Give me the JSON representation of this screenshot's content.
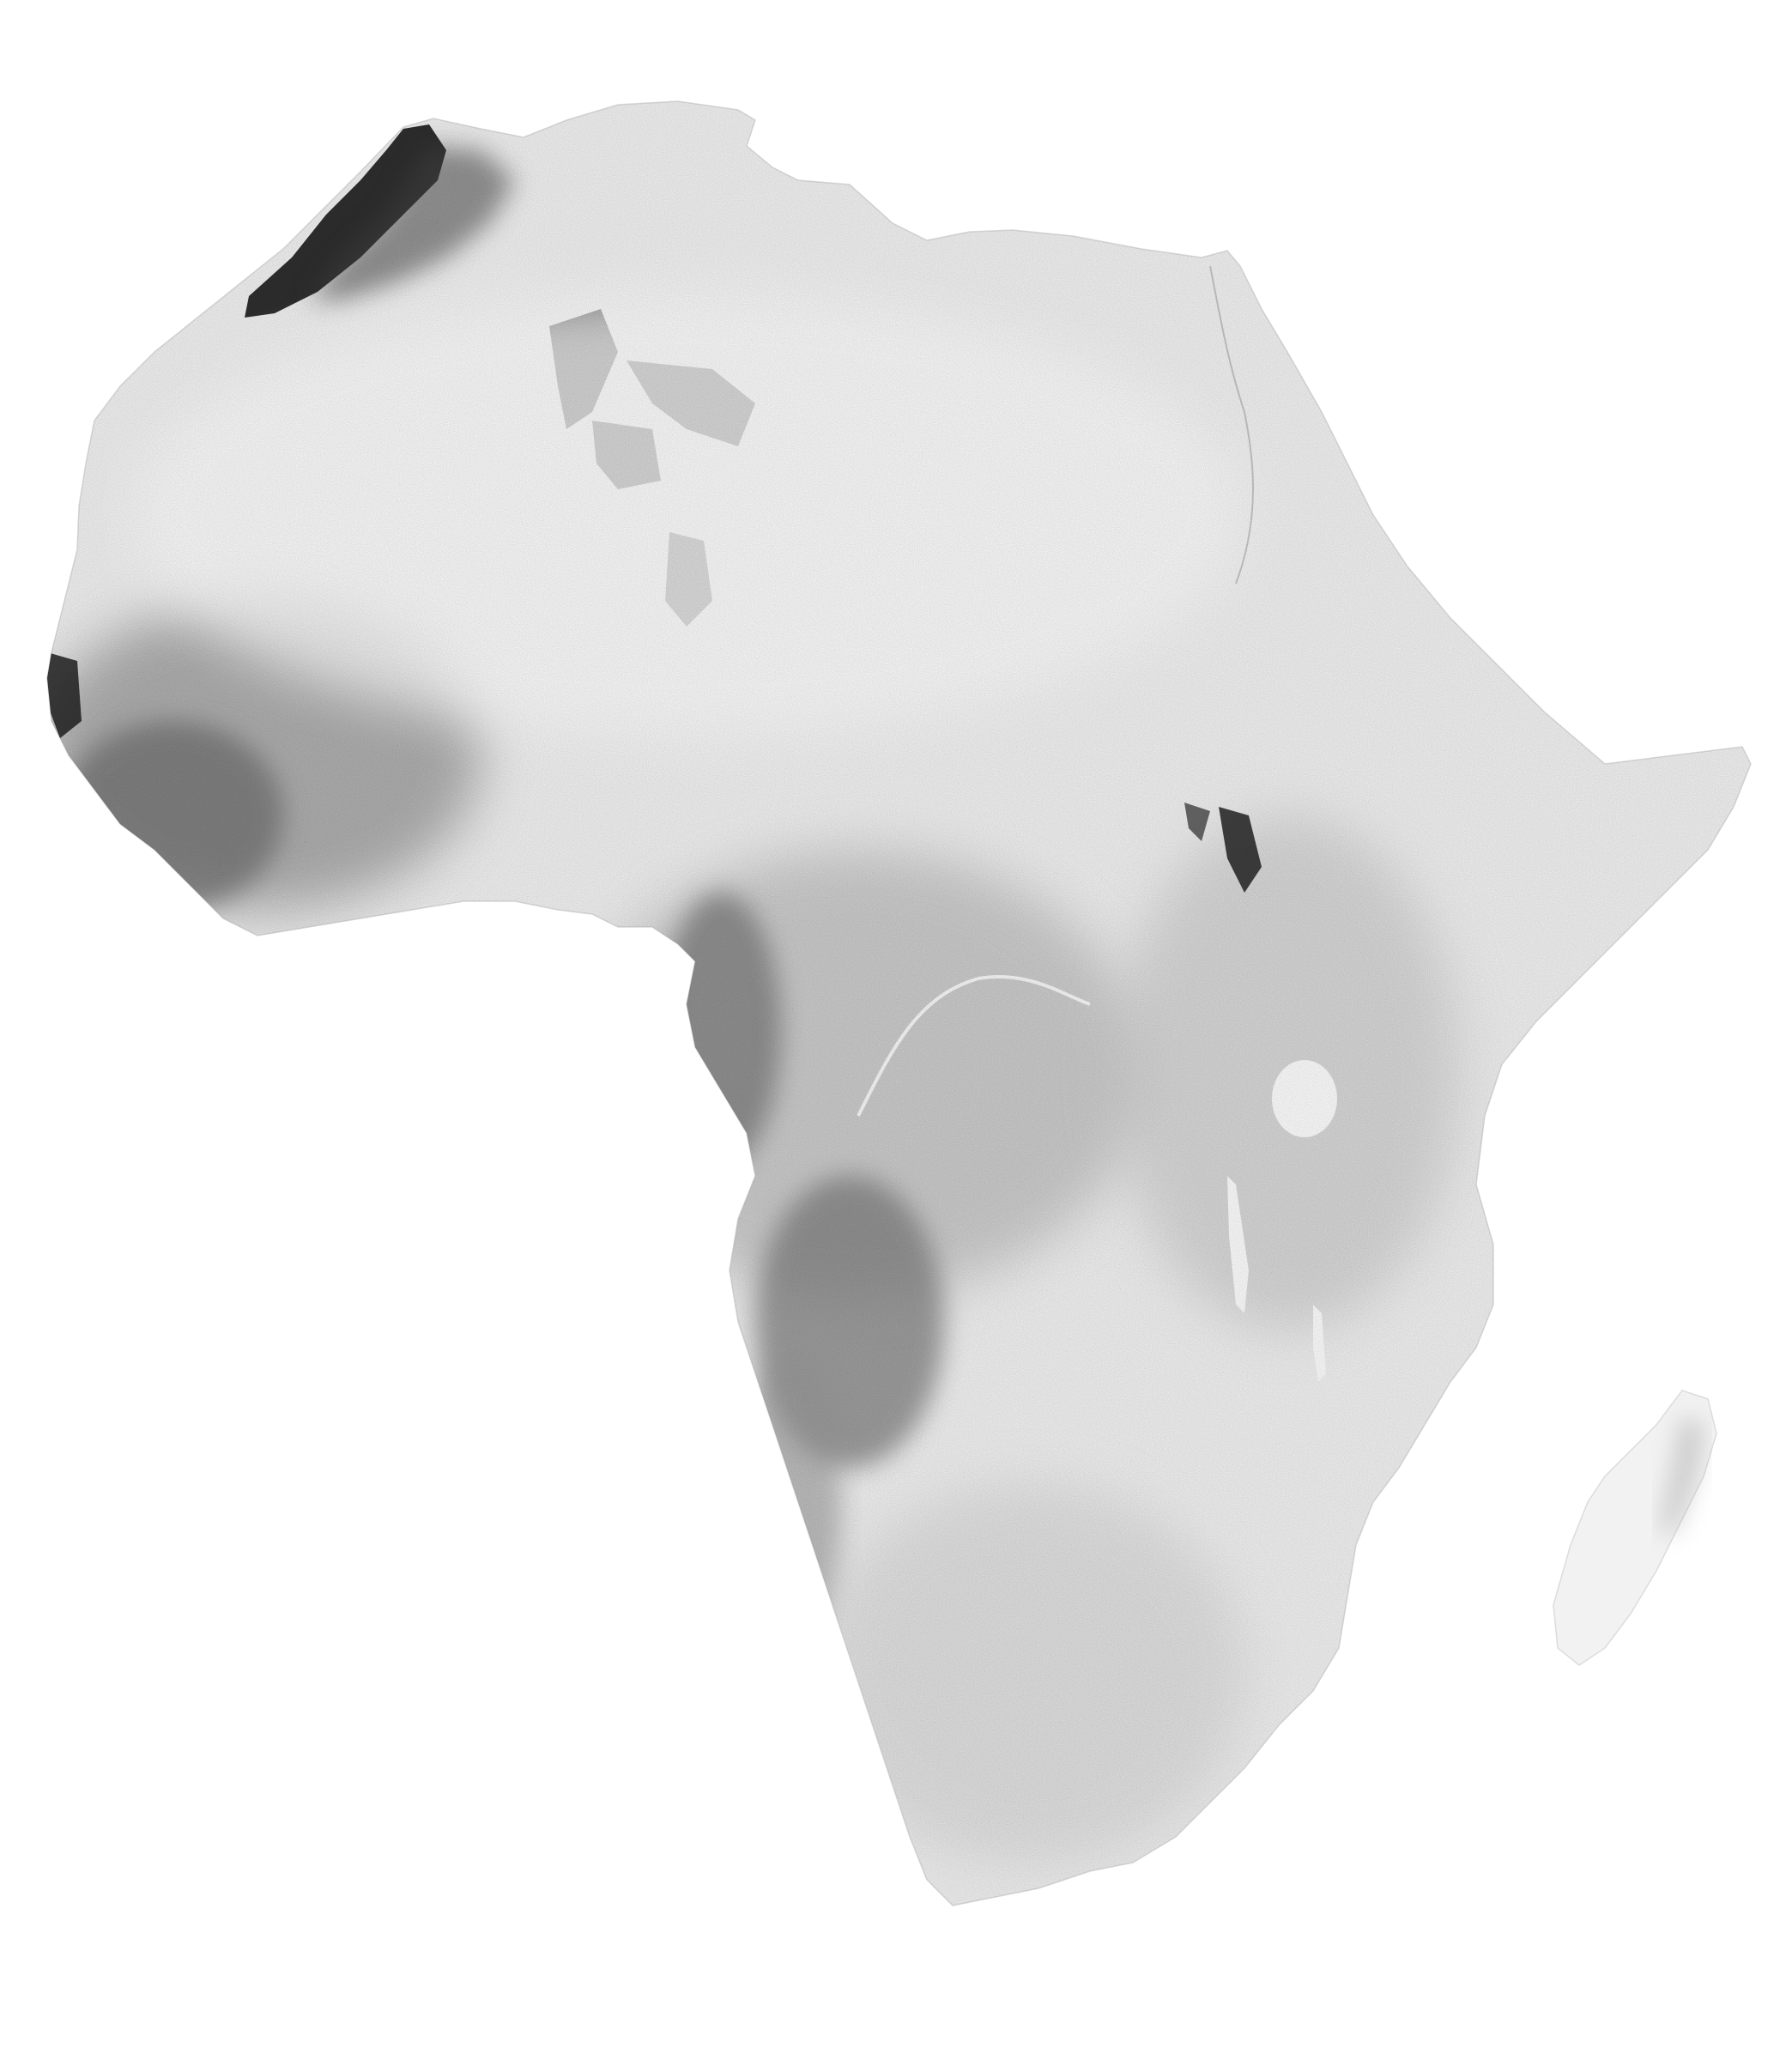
{
  "map": {
    "subject": "Africa",
    "style": "grayscale raster",
    "colors": {
      "background": "#ffffff",
      "land_light": "#f3f3f3",
      "land_mid": "#b9b9b9",
      "land_dark": "#1a1a1a",
      "lake": "#ffffff"
    },
    "labels": []
  }
}
